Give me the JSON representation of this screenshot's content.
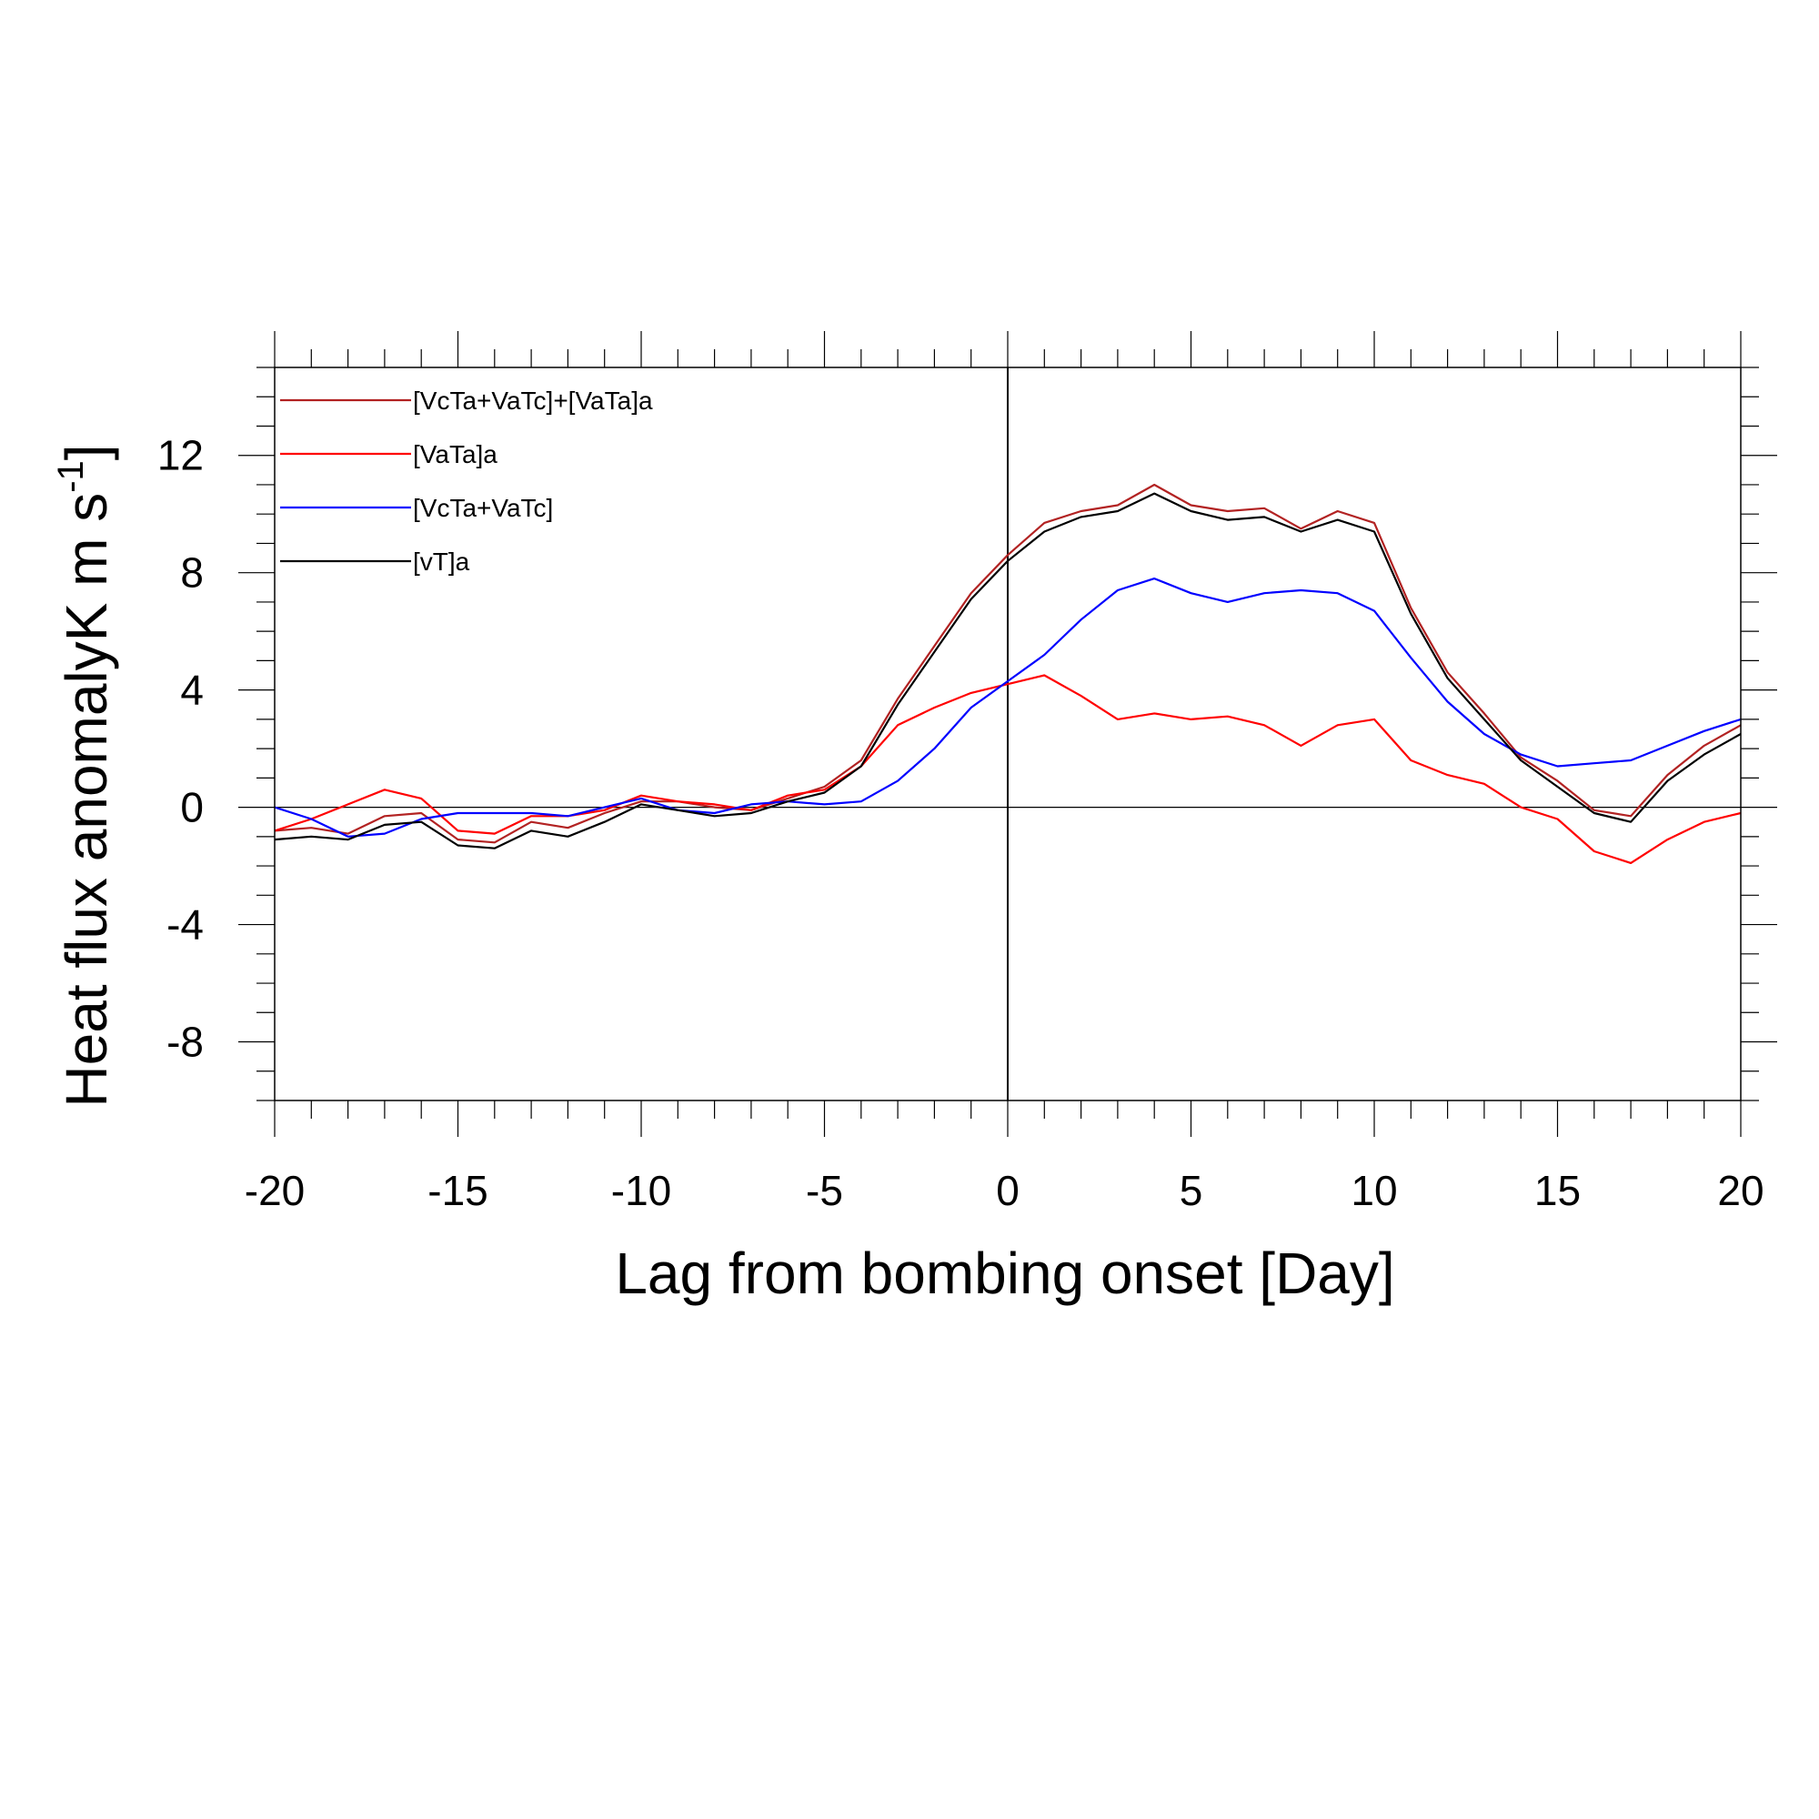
{
  "chart_data": {
    "type": "line",
    "xlabel": "Lag from bombing onset [Day]",
    "ylabel": "Heat flux anomalyK m s",
    "ylabel_superscript": "-1",
    "ylabel_close": "]",
    "xlim": [
      -20,
      20
    ],
    "ylim": [
      -10,
      15
    ],
    "xticks": [
      -20,
      -15,
      -10,
      -5,
      0,
      5,
      10,
      15,
      20
    ],
    "yticks": [
      -8,
      -4,
      0,
      4,
      8,
      12
    ],
    "x_minor_step": 1,
    "y_minor_step": 1,
    "reference_lines": {
      "x": 0,
      "y": 0
    },
    "legend_position": "top-left",
    "grid": false,
    "x": [
      -20,
      -19,
      -18,
      -17,
      -16,
      -15,
      -14,
      -13,
      -12,
      -11,
      -10,
      -9,
      -8,
      -7,
      -6,
      -5,
      -4,
      -3,
      -2,
      -1,
      0,
      1,
      2,
      3,
      4,
      5,
      6,
      7,
      8,
      9,
      10,
      11,
      12,
      13,
      14,
      15,
      16,
      17,
      18,
      19,
      20
    ],
    "series": [
      {
        "name": "[VcTa+VaTc]+[VaTa]a",
        "color": "#b22222",
        "values": [
          -0.8,
          -0.7,
          -0.9,
          -0.3,
          -0.2,
          -1.1,
          -1.2,
          -0.5,
          -0.7,
          -0.2,
          0.2,
          0.2,
          0.0,
          -0.1,
          0.3,
          0.7,
          1.6,
          3.7,
          5.5,
          7.3,
          8.6,
          9.7,
          10.1,
          10.3,
          11.0,
          10.3,
          10.1,
          10.2,
          9.5,
          10.1,
          9.7,
          6.8,
          4.6,
          3.2,
          1.7,
          0.9,
          -0.1,
          -0.3,
          1.1,
          2.1,
          2.8
        ]
      },
      {
        "name": "[VaTa]a",
        "color": "#ff0000",
        "values": [
          -0.8,
          -0.4,
          0.1,
          0.6,
          0.3,
          -0.8,
          -0.9,
          -0.3,
          -0.3,
          -0.1,
          0.4,
          0.2,
          0.1,
          -0.1,
          0.4,
          0.6,
          1.4,
          2.8,
          3.4,
          3.9,
          4.2,
          4.5,
          3.8,
          3.0,
          3.2,
          3.0,
          3.1,
          2.8,
          2.1,
          2.8,
          3.0,
          1.6,
          1.1,
          0.8,
          0.0,
          -0.4,
          -1.5,
          -1.9,
          -1.1,
          -0.5,
          -0.2
        ]
      },
      {
        "name": "[VcTa+VaTc]",
        "color": "#0000ff",
        "values": [
          0.0,
          -0.4,
          -1.0,
          -0.9,
          -0.4,
          -0.2,
          -0.2,
          -0.2,
          -0.3,
          0.0,
          0.3,
          -0.1,
          -0.2,
          0.1,
          0.2,
          0.1,
          0.2,
          0.9,
          2.0,
          3.4,
          4.3,
          5.2,
          6.4,
          7.4,
          7.8,
          7.3,
          7.0,
          7.3,
          7.4,
          7.3,
          6.7,
          5.1,
          3.6,
          2.5,
          1.8,
          1.4,
          1.5,
          1.6,
          2.1,
          2.6,
          3.0
        ]
      },
      {
        "name": "[vT]a",
        "color": "#000000",
        "values": [
          -1.1,
          -1.0,
          -1.1,
          -0.6,
          -0.5,
          -1.3,
          -1.4,
          -0.8,
          -1.0,
          -0.5,
          0.1,
          -0.1,
          -0.3,
          -0.2,
          0.2,
          0.5,
          1.4,
          3.5,
          5.3,
          7.1,
          8.4,
          9.4,
          9.9,
          10.1,
          10.7,
          10.1,
          9.8,
          9.9,
          9.4,
          9.8,
          9.4,
          6.6,
          4.4,
          3.0,
          1.6,
          0.7,
          -0.2,
          -0.5,
          0.9,
          1.8,
          2.5
        ]
      }
    ]
  }
}
